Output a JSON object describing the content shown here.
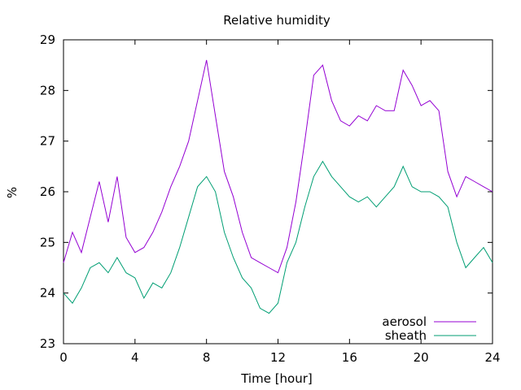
{
  "chart_data": {
    "type": "line",
    "title": "Relative humidity",
    "xlabel": "Time [hour]",
    "ylabel": "%",
    "xlim": [
      0,
      24
    ],
    "ylim": [
      23,
      29
    ],
    "xticks": [
      0,
      4,
      8,
      12,
      16,
      20,
      24
    ],
    "yticks": [
      23,
      24,
      25,
      26,
      27,
      28,
      29
    ],
    "grid": false,
    "legend_position": "bottom-right",
    "x": [
      0,
      0.5,
      1,
      1.5,
      2,
      2.5,
      3,
      3.5,
      4,
      4.5,
      5,
      5.5,
      6,
      6.5,
      7,
      7.5,
      8,
      8.5,
      9,
      9.5,
      10,
      10.5,
      11,
      11.5,
      12,
      12.5,
      13,
      13.5,
      14,
      14.5,
      15,
      15.5,
      16,
      16.5,
      17,
      17.5,
      18,
      18.5,
      19,
      19.5,
      20,
      20.5,
      21,
      21.5,
      22,
      22.5,
      23,
      23.5,
      24
    ],
    "series": [
      {
        "name": "aerosol",
        "color": "#9400d3",
        "values": [
          24.6,
          25.2,
          24.8,
          25.5,
          26.2,
          25.4,
          26.3,
          25.1,
          24.8,
          24.9,
          25.2,
          25.6,
          26.1,
          26.5,
          27.0,
          27.8,
          28.6,
          27.5,
          26.4,
          25.9,
          25.2,
          24.7,
          24.6,
          24.5,
          24.4,
          24.9,
          25.8,
          27.0,
          28.3,
          28.5,
          27.8,
          27.4,
          27.3,
          27.5,
          27.4,
          27.7,
          27.6,
          27.6,
          28.4,
          28.1,
          27.7,
          27.8,
          27.6,
          26.4,
          25.9,
          26.3,
          26.2,
          26.1,
          26.0
        ]
      },
      {
        "name": "sheath",
        "color": "#009e73",
        "values": [
          24.0,
          23.8,
          24.1,
          24.5,
          24.6,
          24.4,
          24.7,
          24.4,
          24.3,
          23.9,
          24.2,
          24.1,
          24.4,
          24.9,
          25.5,
          26.1,
          26.3,
          26.0,
          25.2,
          24.7,
          24.3,
          24.1,
          23.7,
          23.6,
          23.8,
          24.6,
          25.0,
          25.7,
          26.3,
          26.6,
          26.3,
          26.1,
          25.9,
          25.8,
          25.9,
          25.7,
          25.9,
          26.1,
          26.5,
          26.1,
          26.0,
          26.0,
          25.9,
          25.7,
          25.0,
          24.5,
          24.7,
          24.9,
          24.6
        ]
      }
    ]
  }
}
